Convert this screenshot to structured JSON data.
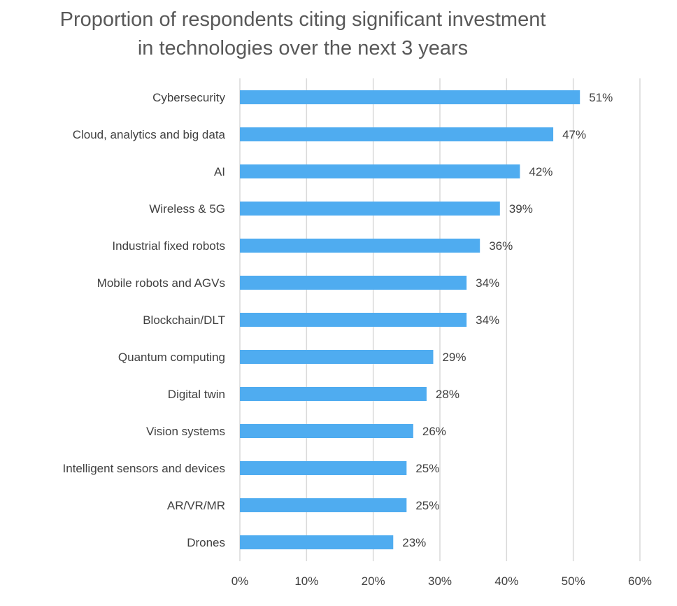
{
  "chart_data": {
    "type": "bar",
    "orientation": "horizontal",
    "title": "Proportion of respondents citing significant investment in technologies over the next 3 years",
    "title_lines": [
      "Proportion of respondents citing significant investment",
      "in technologies over the next 3 years"
    ],
    "categories": [
      "Cybersecurity",
      "Cloud, analytics and big data",
      "AI",
      "Wireless & 5G",
      "Industrial fixed robots",
      "Mobile robots and AGVs",
      "Blockchain/DLT",
      "Quantum computing",
      "Digital twin",
      "Vision systems",
      "Intelligent sensors and devices",
      "AR/VR/MR",
      "Drones"
    ],
    "values": [
      51,
      47,
      42,
      39,
      36,
      34,
      34,
      29,
      28,
      26,
      25,
      25,
      23
    ],
    "data_labels": [
      "51%",
      "47%",
      "42%",
      "39%",
      "36%",
      "34%",
      "34%",
      "29%",
      "28%",
      "26%",
      "25%",
      "25%",
      "23%"
    ],
    "xlim": [
      0,
      60
    ],
    "xticks": [
      0,
      10,
      20,
      30,
      40,
      50,
      60
    ],
    "xtick_labels": [
      "0%",
      "10%",
      "20%",
      "30%",
      "40%",
      "50%",
      "60%"
    ],
    "xlabel": "",
    "ylabel": "",
    "grid": "vertical",
    "legend": "none",
    "bar_color": "#4facf0"
  }
}
